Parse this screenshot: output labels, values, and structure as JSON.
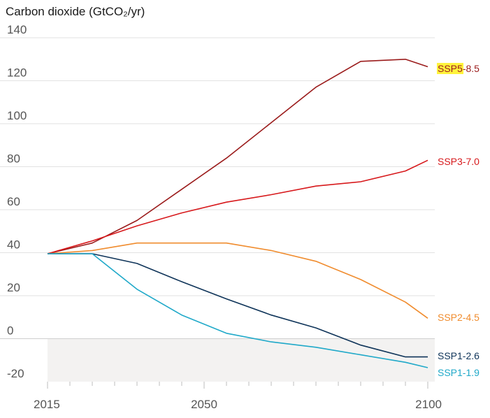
{
  "chart_data": {
    "type": "line",
    "title": "Carbon dioxide (GtCO₂/yr)",
    "xlabel": "",
    "ylabel": "",
    "xlim": [
      2015,
      2100
    ],
    "ylim": [
      -20,
      140
    ],
    "x_ticks": [
      2015,
      2050,
      2100
    ],
    "y_ticks": [
      -20,
      0,
      20,
      40,
      60,
      80,
      100,
      120,
      140
    ],
    "grid": true,
    "negative_region_shaded": true,
    "x": [
      2015,
      2025,
      2035,
      2045,
      2055,
      2065,
      2075,
      2085,
      2095,
      2100
    ],
    "series": [
      {
        "name": "SSP5-8.5",
        "highlight": "SSP5",
        "rest": "-8.5",
        "color": "#9b1c1c",
        "values": [
          39.5,
          44.5,
          55,
          69.5,
          84,
          100.5,
          117,
          129,
          130,
          126.5
        ]
      },
      {
        "name": "SSP3-7.0",
        "highlight": "",
        "rest": "SSP3-7.0",
        "color": "#d7191c",
        "values": [
          39.5,
          45.5,
          52.5,
          58.5,
          63.5,
          67,
          71,
          73,
          78,
          83
        ]
      },
      {
        "name": "SSP2-4.5",
        "highlight": "",
        "rest": "SSP2-4.5",
        "color": "#f08c2e",
        "values": [
          39.5,
          41,
          44.5,
          44.5,
          44.5,
          41,
          36,
          27.5,
          17,
          9.5
        ]
      },
      {
        "name": "SSP1-2.6",
        "highlight": "",
        "rest": "SSP1-2.6",
        "color": "#0f3459",
        "values": [
          39.5,
          39.5,
          35,
          26.5,
          18.5,
          11,
          5,
          -3,
          -8.5,
          -8.5
        ]
      },
      {
        "name": "SSP1-1.9",
        "highlight": "",
        "rest": "SSP1-1.9",
        "color": "#20a9c9",
        "values": [
          39.5,
          39.5,
          23,
          11,
          2.5,
          -1.5,
          -4,
          -7.5,
          -11,
          -13.5
        ]
      }
    ]
  }
}
